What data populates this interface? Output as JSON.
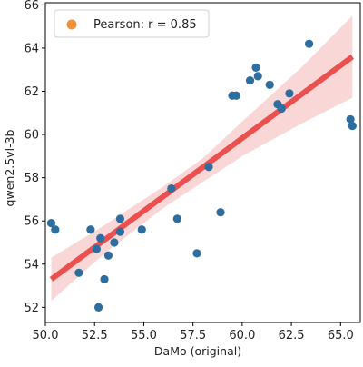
{
  "chart_data": {
    "type": "scatter",
    "xlabel": "DaMo (original)",
    "ylabel": "qwen2.5vl-3b",
    "xlim": [
      50.0,
      66.0
    ],
    "ylim": [
      51.3,
      66.1
    ],
    "x_ticks": [
      50.0,
      52.5,
      55.0,
      57.5,
      60.0,
      62.5,
      65.0
    ],
    "x_tick_labels": [
      "50.0",
      "52.5",
      "55.0",
      "57.5",
      "60.0",
      "62.5",
      "65.0"
    ],
    "y_ticks": [
      52,
      54,
      56,
      58,
      60,
      62,
      64,
      66
    ],
    "y_tick_labels": [
      "52",
      "54",
      "56",
      "58",
      "60",
      "62",
      "64",
      "66"
    ],
    "grid": false,
    "legend": {
      "position": "top-left",
      "entries": [
        {
          "label": "Pearson: r = 0.85",
          "color": "#f0913a"
        }
      ]
    },
    "points": [
      {
        "x": 50.3,
        "y": 55.9
      },
      {
        "x": 50.5,
        "y": 55.6
      },
      {
        "x": 51.7,
        "y": 53.6
      },
      {
        "x": 52.3,
        "y": 55.6
      },
      {
        "x": 52.6,
        "y": 54.7
      },
      {
        "x": 52.7,
        "y": 52.0
      },
      {
        "x": 52.8,
        "y": 55.2
      },
      {
        "x": 53.0,
        "y": 53.3
      },
      {
        "x": 53.2,
        "y": 54.4
      },
      {
        "x": 53.5,
        "y": 55.0
      },
      {
        "x": 53.8,
        "y": 56.1
      },
      {
        "x": 53.8,
        "y": 55.5
      },
      {
        "x": 54.9,
        "y": 55.6
      },
      {
        "x": 56.4,
        "y": 57.5
      },
      {
        "x": 56.7,
        "y": 56.1
      },
      {
        "x": 57.7,
        "y": 54.5
      },
      {
        "x": 58.3,
        "y": 58.5
      },
      {
        "x": 58.9,
        "y": 56.4
      },
      {
        "x": 59.5,
        "y": 61.8
      },
      {
        "x": 59.7,
        "y": 61.8
      },
      {
        "x": 60.4,
        "y": 62.5
      },
      {
        "x": 60.7,
        "y": 63.1
      },
      {
        "x": 60.8,
        "y": 62.7
      },
      {
        "x": 61.4,
        "y": 62.3
      },
      {
        "x": 61.8,
        "y": 61.4
      },
      {
        "x": 62.0,
        "y": 61.2
      },
      {
        "x": 62.4,
        "y": 61.9
      },
      {
        "x": 63.4,
        "y": 64.2
      },
      {
        "x": 65.5,
        "y": 60.7
      },
      {
        "x": 65.6,
        "y": 60.4
      }
    ],
    "regression": {
      "x_start": 50.3,
      "y_start": 53.3,
      "x_end": 65.6,
      "y_end": 63.6
    },
    "confidence_band": [
      {
        "x": 50.3,
        "lower": 52.3,
        "upper": 54.3
      },
      {
        "x": 53.0,
        "lower": 54.5,
        "upper": 55.8
      },
      {
        "x": 56.0,
        "lower": 56.6,
        "upper": 57.6
      },
      {
        "x": 58.0,
        "lower": 57.8,
        "upper": 58.9
      },
      {
        "x": 60.0,
        "lower": 59.0,
        "upper": 60.6
      },
      {
        "x": 63.0,
        "lower": 60.5,
        "upper": 63.1
      },
      {
        "x": 65.6,
        "lower": 61.7,
        "upper": 65.5
      }
    ],
    "colors": {
      "points": "#2e6e9e",
      "regression": "#e8413f",
      "band": "#f7c9c9",
      "legend_marker": "#f0913a"
    }
  }
}
